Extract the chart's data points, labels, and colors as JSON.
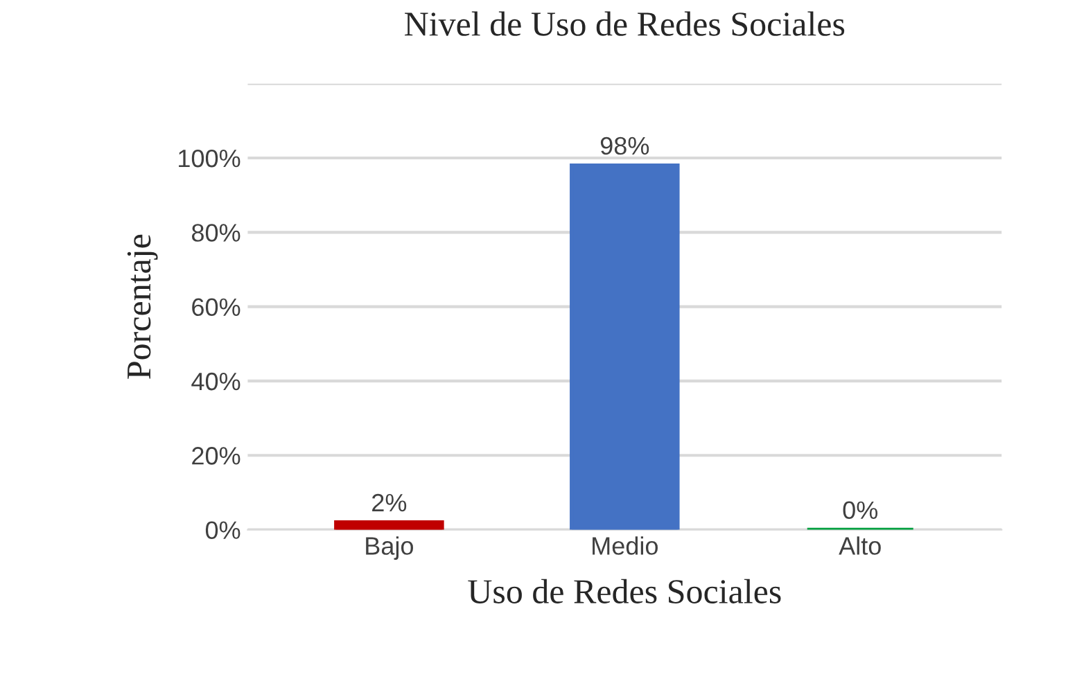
{
  "chart_data": {
    "type": "bar",
    "title": "Nivel de Uso de Redes Sociales",
    "xlabel": "Uso de Redes Sociales",
    "ylabel": "Porcentaje",
    "categories": [
      "Bajo",
      "Medio",
      "Alto"
    ],
    "values": [
      2,
      98,
      0
    ],
    "colors": [
      "#c00000",
      "#4472c4",
      "#00a040"
    ],
    "value_labels": [
      "2%",
      "98%",
      "0%"
    ],
    "ylim": [
      0,
      120
    ],
    "yticks": [
      {
        "value": 0,
        "label": "0%"
      },
      {
        "value": 20,
        "label": "20%"
      },
      {
        "value": 40,
        "label": "40%"
      },
      {
        "value": 60,
        "label": "60%"
      },
      {
        "value": 80,
        "label": "80%"
      },
      {
        "value": 100,
        "label": "100%"
      },
      {
        "value": 120,
        "label": null
      }
    ],
    "grid": "y"
  }
}
